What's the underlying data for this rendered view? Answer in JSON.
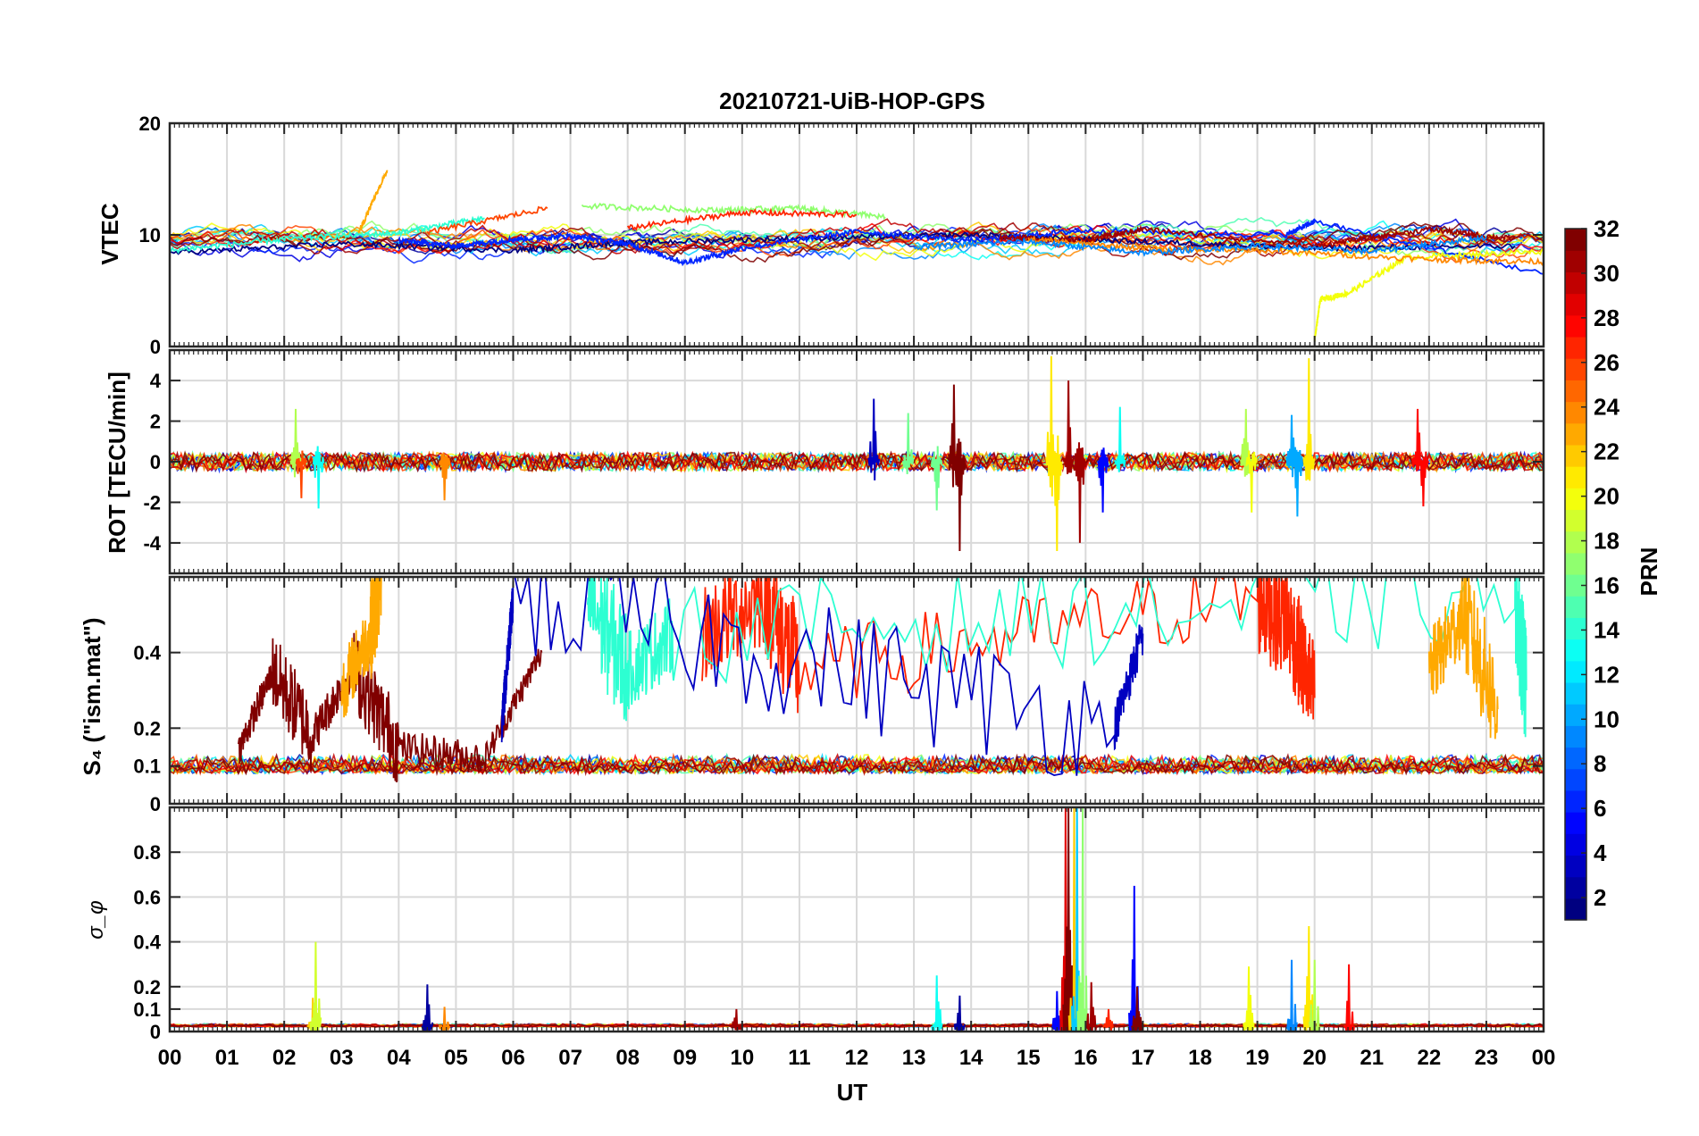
{
  "chart_data": {
    "title": "20210721-UiB-HOP-GPS",
    "type": "line",
    "x_axis": {
      "label": "UT",
      "range": [
        0,
        24
      ],
      "tick_labels": [
        "00",
        "01",
        "02",
        "03",
        "04",
        "05",
        "06",
        "07",
        "08",
        "09",
        "10",
        "11",
        "12",
        "13",
        "14",
        "15",
        "16",
        "17",
        "18",
        "19",
        "20",
        "21",
        "22",
        "23",
        "00"
      ]
    },
    "panels": [
      {
        "id": "vtec",
        "ylabel": "VTEC",
        "ylim": [
          0,
          20
        ],
        "yticks": [
          0,
          10,
          20
        ],
        "ytick_labels": [
          "0",
          "10",
          "20"
        ],
        "baseline": 9.5,
        "noise": 0.8,
        "noise_pos": 0.4,
        "series": [
          {
            "prn": 1,
            "t": [
              0,
              3,
              6,
              8,
              11,
              14,
              17,
              20,
              23.5
            ],
            "y": [
              8.4,
              9.2,
              8.6,
              9.3,
              9.7,
              10.0,
              9.4,
              8.8,
              9.0
            ]
          },
          {
            "prn": 6,
            "t": [
              4,
              5,
              6,
              7,
              8,
              9,
              10,
              12,
              14,
              16,
              19.5,
              20,
              24
            ],
            "y": [
              9.5,
              9.0,
              9.6,
              9.9,
              9.2,
              7.5,
              8.8,
              10.3,
              9.5,
              10.4,
              10.0,
              11.2,
              6.5
            ]
          },
          {
            "prn": 14,
            "t": [
              0,
              2,
              4,
              5.5
            ],
            "y": [
              8.6,
              9.6,
              10.2,
              11.5
            ]
          },
          {
            "prn": 23,
            "t": [
              3.3,
              3.8
            ],
            "y": [
              10.2,
              15.8
            ]
          },
          {
            "prn": 26,
            "t": [
              4.5,
              6.6
            ],
            "y": [
              10.2,
              12.4
            ]
          },
          {
            "prn": 17,
            "t": [
              7.2,
              9.5,
              11,
              12.5
            ],
            "y": [
              12.6,
              12.2,
              12.4,
              11.6
            ]
          },
          {
            "prn": 27,
            "t": [
              8,
              10,
              12
            ],
            "y": [
              10.6,
              12.0,
              11.8
            ]
          },
          {
            "prn": 20,
            "t": [
              20.0,
              20.1,
              20.6,
              21.6,
              24
            ],
            "y": [
              0.6,
              4.2,
              4.8,
              8.0,
              8.5
            ]
          },
          {
            "prn": 31,
            "t": [
              14.5,
              16.0,
              17.0,
              20.0,
              22.0,
              23.5
            ],
            "y": [
              9.8,
              9.5,
              10.5,
              9.0,
              10.5,
              9.6
            ]
          },
          {
            "prn": 24,
            "t": [
              15,
              17,
              19,
              22,
              24
            ],
            "y": [
              9.6,
              8.8,
              8.6,
              7.8,
              7.6
            ]
          },
          {
            "prn": 9,
            "t": [
              13,
              15,
              17,
              19,
              21,
              23
            ],
            "y": [
              8.9,
              9.4,
              8.4,
              9.0,
              8.5,
              9.8
            ]
          }
        ],
        "bursts": []
      },
      {
        "id": "rot",
        "ylabel": "ROT [TECU/min]",
        "ylim": [
          -5.5,
          5.5
        ],
        "yticks": [
          -4,
          -2,
          0,
          2,
          4
        ],
        "ytick_labels": [
          "-4",
          "-2",
          "0",
          "2",
          "4"
        ],
        "baseline": 0,
        "noise": 0.45,
        "noise_pos": 0.5,
        "series": [],
        "bursts": [
          {
            "t": 2.2,
            "y": 2.6,
            "prn": 18
          },
          {
            "t": 2.3,
            "y": -1.8,
            "prn": 26
          },
          {
            "t": 2.6,
            "y": -2.3,
            "prn": 13
          },
          {
            "t": 4.8,
            "y": -1.9,
            "prn": 24
          },
          {
            "t": 12.3,
            "y": 3.1,
            "prn": 3
          },
          {
            "t": 12.9,
            "y": 2.4,
            "prn": 16
          },
          {
            "t": 13.4,
            "y": -2.4,
            "prn": 16
          },
          {
            "t": 13.7,
            "y": 3.8,
            "prn": 32
          },
          {
            "t": 13.8,
            "y": -4.4,
            "prn": 32
          },
          {
            "t": 15.4,
            "y": 5.2,
            "prn": 21
          },
          {
            "t": 15.5,
            "y": -4.4,
            "prn": 21
          },
          {
            "t": 15.7,
            "y": 4.0,
            "prn": 31
          },
          {
            "t": 15.9,
            "y": -4.0,
            "prn": 31
          },
          {
            "t": 16.3,
            "y": -2.5,
            "prn": 5
          },
          {
            "t": 16.6,
            "y": 2.7,
            "prn": 13
          },
          {
            "t": 18.8,
            "y": 2.6,
            "prn": 18
          },
          {
            "t": 18.9,
            "y": -2.5,
            "prn": 20
          },
          {
            "t": 19.6,
            "y": 2.3,
            "prn": 10
          },
          {
            "t": 19.7,
            "y": -2.7,
            "prn": 10
          },
          {
            "t": 19.9,
            "y": 5.1,
            "prn": 21
          },
          {
            "t": 21.8,
            "y": 2.6,
            "prn": 28
          },
          {
            "t": 21.9,
            "y": -2.2,
            "prn": 28
          }
        ]
      },
      {
        "id": "s4",
        "ylabel": "S₄ (\"ism.mat\")",
        "ylim": [
          0,
          0.6
        ],
        "yticks": [
          0,
          0.1,
          0.2,
          0.4
        ],
        "ytick_labels": [
          "0",
          "0.1",
          "0.2",
          "0.4"
        ],
        "baseline": 0.08,
        "noise": 0.05,
        "noise_pos": 1.0,
        "series": [
          {
            "prn": 32,
            "t": [
              1.2,
              1.8,
              2.5,
              3.2,
              4.0,
              5.5,
              6.5
            ],
            "y": [
              0.14,
              0.35,
              0.18,
              0.36,
              0.15,
              0.12,
              0.4
            ]
          },
          {
            "prn": 23,
            "t": [
              3.0,
              3.5,
              3.7
            ],
            "y": [
              0.3,
              0.45,
              0.6
            ]
          },
          {
            "prn": 27,
            "t": [
              9.3,
              10.4,
              11.0,
              19.0,
              19.5,
              20.0
            ],
            "y": [
              0.45,
              0.55,
              0.35,
              0.55,
              0.5,
              0.28
            ]
          },
          {
            "prn": 14,
            "t": [
              7.3,
              8.0,
              8.8,
              23.5,
              23.7
            ],
            "y": [
              0.55,
              0.35,
              0.45,
              0.55,
              0.3
            ]
          },
          {
            "prn": 23,
            "t": [
              22.0,
              22.6,
              23.2
            ],
            "y": [
              0.35,
              0.5,
              0.25
            ]
          },
          {
            "prn": 3,
            "t": [
              5.8,
              6.0,
              16.5,
              17.0
            ],
            "y": [
              0.2,
              0.55,
              0.2,
              0.45
            ]
          }
        ],
        "bursts": []
      },
      {
        "id": "sigma",
        "ylabel": "σ_φ",
        "ylim": [
          0,
          1
        ],
        "yticks": [
          0,
          0.1,
          0.2,
          0.4,
          0.6,
          0.8
        ],
        "ytick_labels": [
          "0",
          "0.1",
          "0.2",
          "0.4",
          "0.6",
          "0.8"
        ],
        "baseline": 0.02,
        "noise": 0.015,
        "noise_pos": 1.0,
        "series": [],
        "bursts": [
          {
            "t": 2.5,
            "y": 0.15,
            "prn": 22
          },
          {
            "t": 2.55,
            "y": 0.4,
            "prn": 19
          },
          {
            "t": 4.5,
            "y": 0.21,
            "prn": 2
          },
          {
            "t": 4.8,
            "y": 0.11,
            "prn": 24
          },
          {
            "t": 9.9,
            "y": 0.1,
            "prn": 31
          },
          {
            "t": 13.4,
            "y": 0.25,
            "prn": 13
          },
          {
            "t": 13.8,
            "y": 0.16,
            "prn": 2
          },
          {
            "t": 15.5,
            "y": 0.18,
            "prn": 5
          },
          {
            "t": 15.65,
            "y": 1.0,
            "prn": 29
          },
          {
            "t": 15.7,
            "y": 1.0,
            "prn": 32
          },
          {
            "t": 15.8,
            "y": 1.0,
            "prn": 22
          },
          {
            "t": 15.85,
            "y": 1.0,
            "prn": 11
          },
          {
            "t": 15.95,
            "y": 1.0,
            "prn": 17
          },
          {
            "t": 16.1,
            "y": 0.22,
            "prn": 31
          },
          {
            "t": 16.4,
            "y": 0.1,
            "prn": 27
          },
          {
            "t": 16.85,
            "y": 0.65,
            "prn": 5
          },
          {
            "t": 16.9,
            "y": 0.2,
            "prn": 32
          },
          {
            "t": 18.85,
            "y": 0.29,
            "prn": 20
          },
          {
            "t": 19.6,
            "y": 0.32,
            "prn": 9
          },
          {
            "t": 19.9,
            "y": 0.47,
            "prn": 21
          },
          {
            "t": 20.0,
            "y": 0.32,
            "prn": 18
          },
          {
            "t": 20.6,
            "y": 0.3,
            "prn": 28
          }
        ]
      }
    ],
    "colorbar": {
      "label": "PRN",
      "range": [
        1,
        32
      ],
      "colormap": "jet",
      "tick_labels": [
        "2",
        "4",
        "6",
        "8",
        "10",
        "12",
        "14",
        "16",
        "18",
        "20",
        "22",
        "24",
        "26",
        "28",
        "30",
        "32"
      ]
    }
  }
}
